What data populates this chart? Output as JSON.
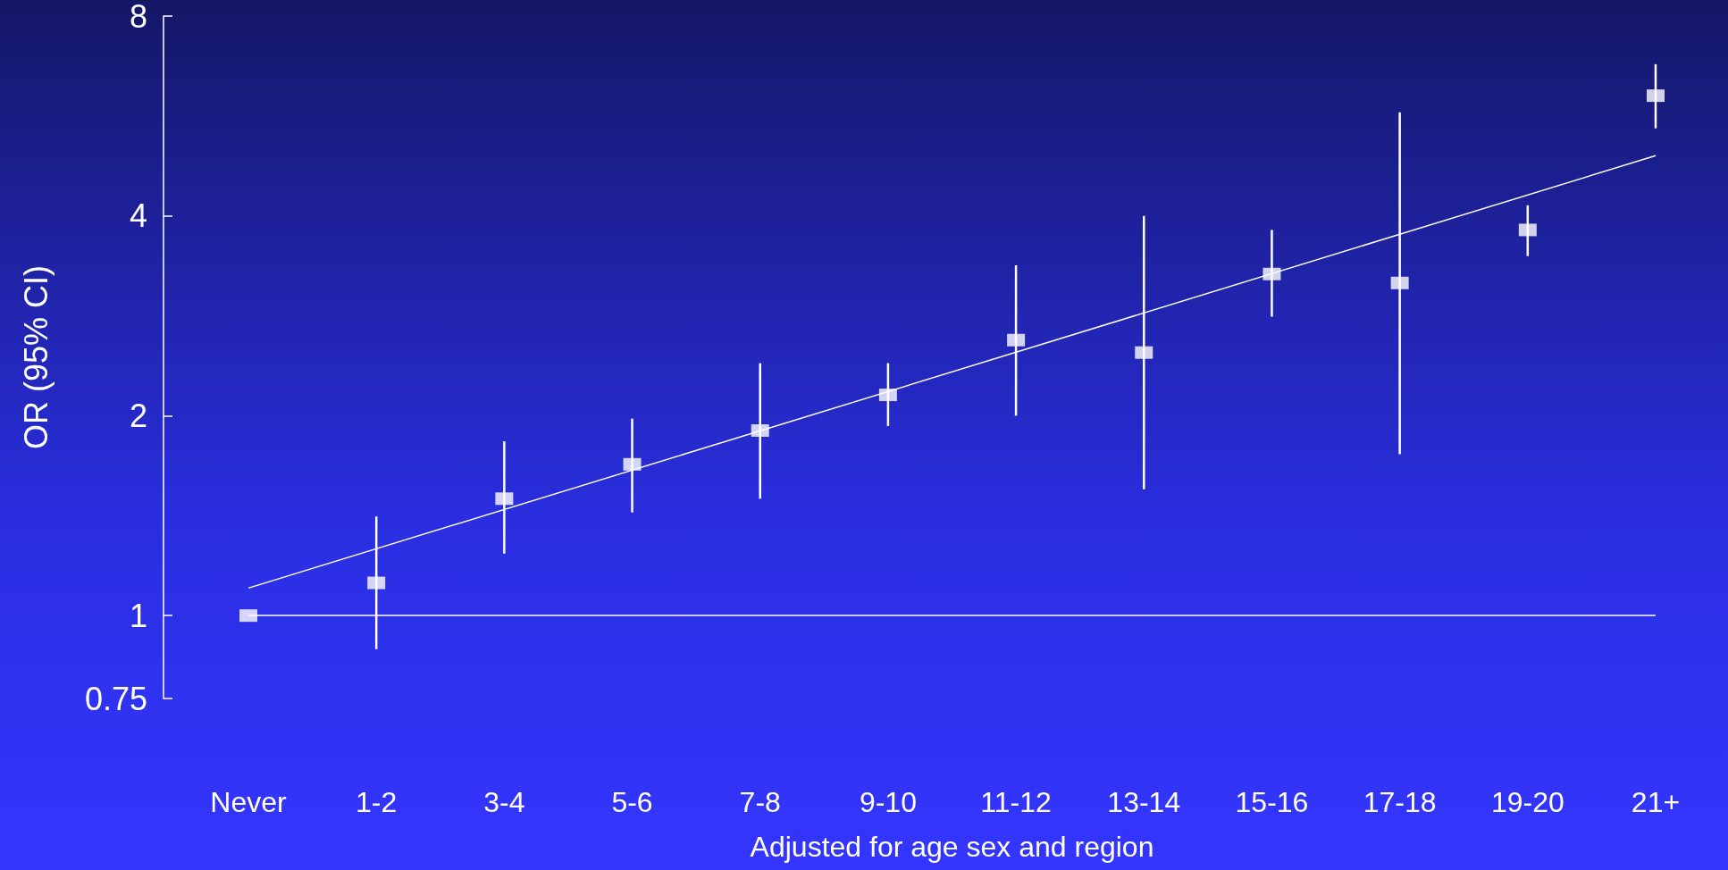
{
  "chart_data": {
    "type": "scatter",
    "xlabel": "Adjusted for age sex and region",
    "ylabel": "OR (95% CI)",
    "categories": [
      "Never",
      "1-2",
      "3-4",
      "5-6",
      "7-8",
      "9-10",
      "11-12",
      "13-14",
      "15-16",
      "17-18",
      "19-20",
      "21+"
    ],
    "log": "y",
    "ylim": [
      0.75,
      8
    ],
    "yticks": [
      0.75,
      1,
      2,
      4,
      8
    ],
    "grid": false,
    "series": [
      {
        "marker": "square",
        "color": "#ffffff",
        "values": [
          1,
          1.12,
          1.5,
          1.69,
          1.9,
          2.15,
          2.6,
          2.49,
          3.27,
          3.17,
          3.81,
          6.07
        ],
        "errors": [
          null,
          [
            0.89,
            1.41
          ],
          [
            1.24,
            1.83
          ],
          [
            1.43,
            1.98
          ],
          [
            1.5,
            2.4
          ],
          [
            1.93,
            2.4
          ],
          [
            2.0,
            3.37
          ],
          [
            1.55,
            4.0
          ],
          [
            2.82,
            3.81
          ],
          [
            1.75,
            5.73
          ],
          [
            3.48,
            4.15
          ],
          [
            5.42,
            6.77
          ]
        ]
      },
      {
        "type": "line",
        "marker": "none",
        "color": "#ffffff",
        "x": [
          "Never",
          "21+"
        ],
        "values": [
          1.1,
          4.93
        ]
      }
    ],
    "ref_lines": [
      {
        "axis": "y",
        "value": 1,
        "color": "#ffffff"
      }
    ]
  }
}
